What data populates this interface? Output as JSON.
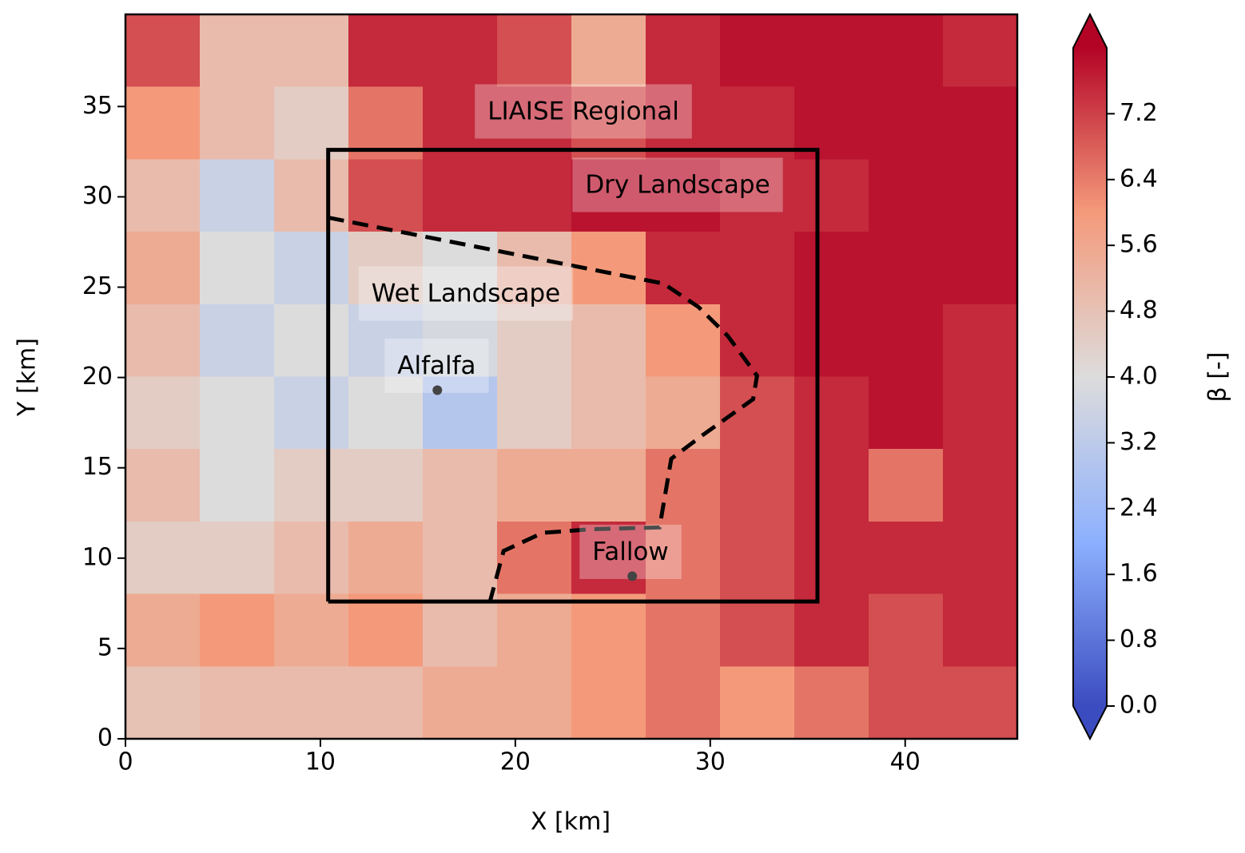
{
  "chart_data": {
    "type": "heatmap",
    "xlabel": "X [km]",
    "ylabel": "Y [km]",
    "xlim": [
      0,
      45.75
    ],
    "ylim": [
      0,
      40.1
    ],
    "xticks": [
      0,
      10,
      20,
      30,
      40
    ],
    "yticks": [
      0,
      5,
      10,
      15,
      20,
      25,
      30,
      35
    ],
    "z": [
      [
        7,
        5,
        5,
        7.5,
        7.5,
        7,
        5.5,
        7.5,
        7.8,
        7.8,
        7.8,
        7.5
      ],
      [
        6,
        5,
        4.5,
        6.5,
        7.5,
        7.5,
        7,
        7.5,
        7.5,
        7.8,
        7.8,
        7.8
      ],
      [
        5,
        3.5,
        5,
        7,
        7.5,
        7.5,
        7.8,
        7.8,
        7.5,
        7.5,
        7.8,
        7.8
      ],
      [
        5.5,
        4,
        3.5,
        4.5,
        4,
        5,
        6,
        7.5,
        7.5,
        7.8,
        7.8,
        7.8
      ],
      [
        5,
        3.5,
        4,
        3.5,
        3.8,
        4.5,
        5,
        6,
        7.5,
        7.8,
        7.8,
        7.5
      ],
      [
        4.5,
        4,
        3.5,
        4,
        3,
        4.5,
        5,
        5.5,
        7,
        7.5,
        7.8,
        7.5
      ],
      [
        5,
        4,
        4.5,
        4.5,
        5,
        5.5,
        5.5,
        6.5,
        7,
        7.5,
        6.5,
        7.5
      ],
      [
        4.5,
        4.5,
        5,
        5.5,
        5,
        6.5,
        7.5,
        6.5,
        7,
        7.5,
        7.5,
        7.5
      ],
      [
        5.5,
        6,
        5.5,
        6,
        5,
        5.5,
        6,
        6.5,
        7,
        7.5,
        7,
        7.5
      ],
      [
        4.8,
        5,
        5,
        5,
        5.5,
        5.5,
        6,
        6.5,
        6,
        6.5,
        7,
        7
      ]
    ],
    "cmap_colors": [
      "#3b4cc0",
      "#8db0fe",
      "#dddcdc",
      "#f49a7b",
      "#b40426"
    ],
    "clim": [
      0,
      8
    ],
    "cbar_label": "β [-]",
    "cbar_ticks": [
      {
        "value": 0,
        "label": "0.0"
      },
      0.8,
      1.6,
      2.4,
      3.2,
      {
        "value": 4,
        "label": "4.0"
      },
      4.8,
      5.6,
      6.4,
      7.2
    ],
    "regions": {
      "dry_box": {
        "x": [
          10.4,
          35.5,
          35.5,
          10.4,
          10.4
        ],
        "y": [
          7.6,
          7.6,
          32.6,
          32.6,
          7.6
        ]
      },
      "wet_boundary": {
        "x": [
          10.4,
          27.6,
          29.4,
          30.9,
          32.4,
          32.2,
          29.6,
          28.0,
          27.4,
          23.9,
          21.4,
          19.4,
          18.7
        ],
        "y": [
          28.85,
          25.2,
          23.9,
          22.3,
          20.1,
          18.8,
          16.8,
          15.5,
          11.7,
          11.6,
          11.4,
          10.4,
          7.6
        ]
      }
    },
    "annotations": [
      "LIAISE Regional",
      "Dry Landscape",
      "Wet Landscape"
    ],
    "sites": [
      {
        "name": "Alfalfa",
        "x": 16.0,
        "y": 19.3
      },
      {
        "name": "Fallow",
        "x": 26.0,
        "y": 9.0
      }
    ]
  }
}
